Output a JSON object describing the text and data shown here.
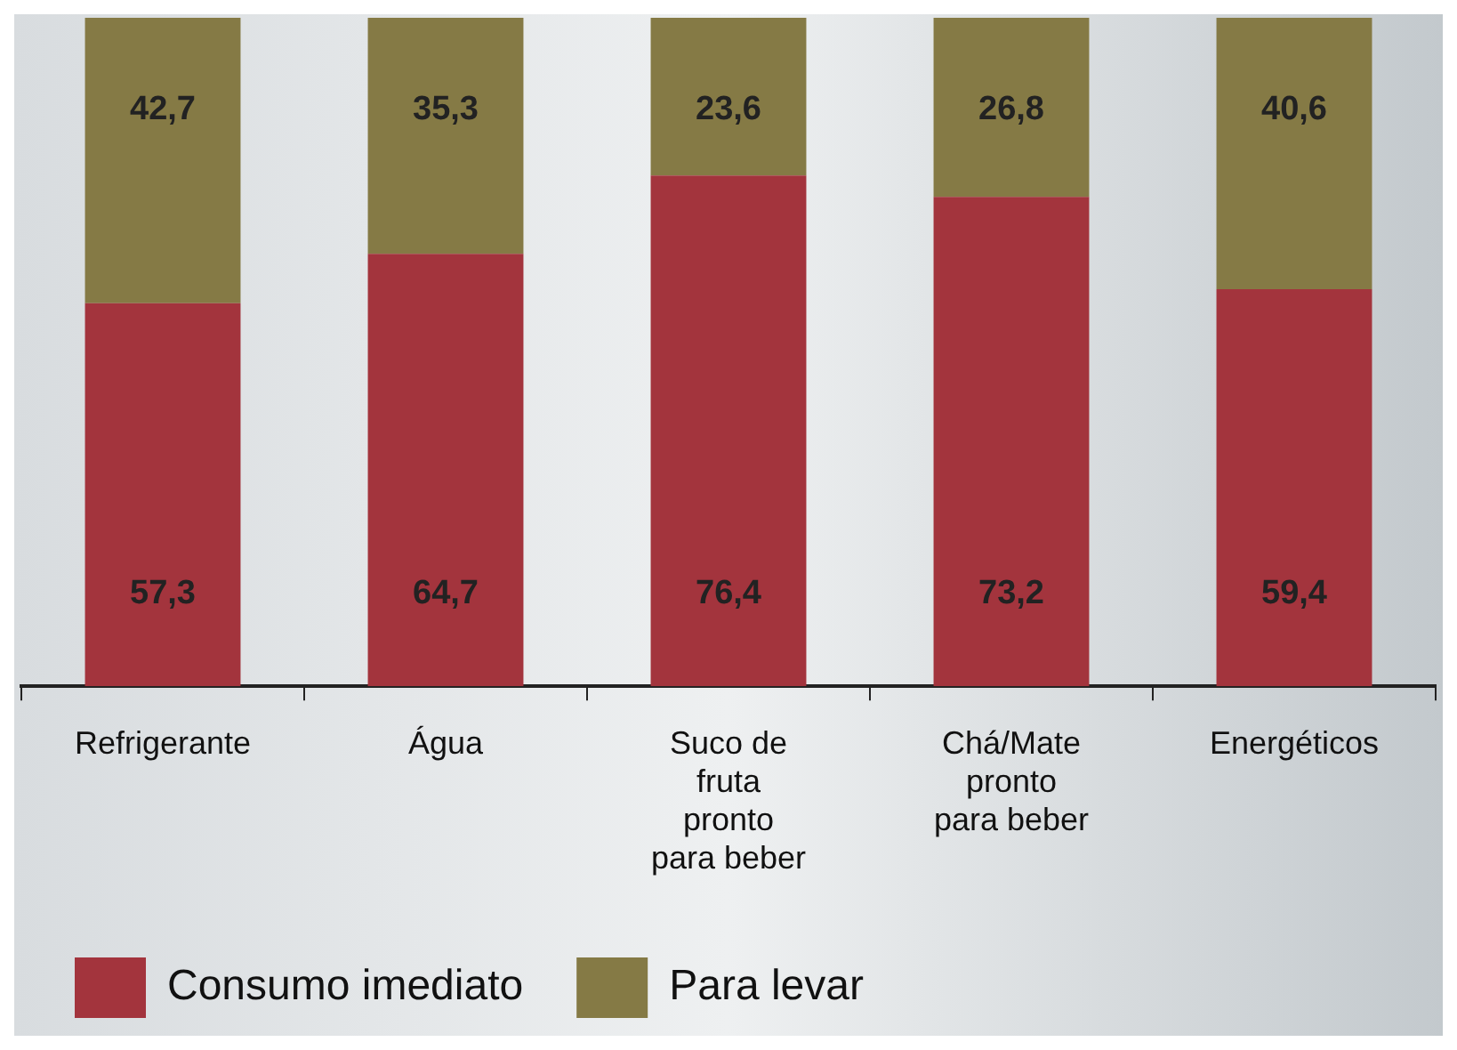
{
  "chart_data": {
    "type": "bar",
    "stacked": true,
    "categories": [
      "Refrigerante",
      "Água",
      "Suco de fruta pronto para beber",
      "Chá/Mate pronto para beber",
      "Energéticos"
    ],
    "series": [
      {
        "name": "Consumo imediato",
        "color": "#a3343d",
        "values": [
          57.3,
          64.7,
          76.4,
          73.2,
          59.4
        ],
        "value_labels": [
          "57,3",
          "64,7",
          "76,4",
          "73,2",
          "59,4"
        ]
      },
      {
        "name": "Para levar",
        "color": "#857a45",
        "values": [
          42.7,
          35.3,
          23.6,
          26.8,
          40.6
        ],
        "value_labels": [
          "42,7",
          "35,3",
          "23,6",
          "26,8",
          "40,6"
        ]
      }
    ],
    "legend": "bottom",
    "grid": false
  }
}
